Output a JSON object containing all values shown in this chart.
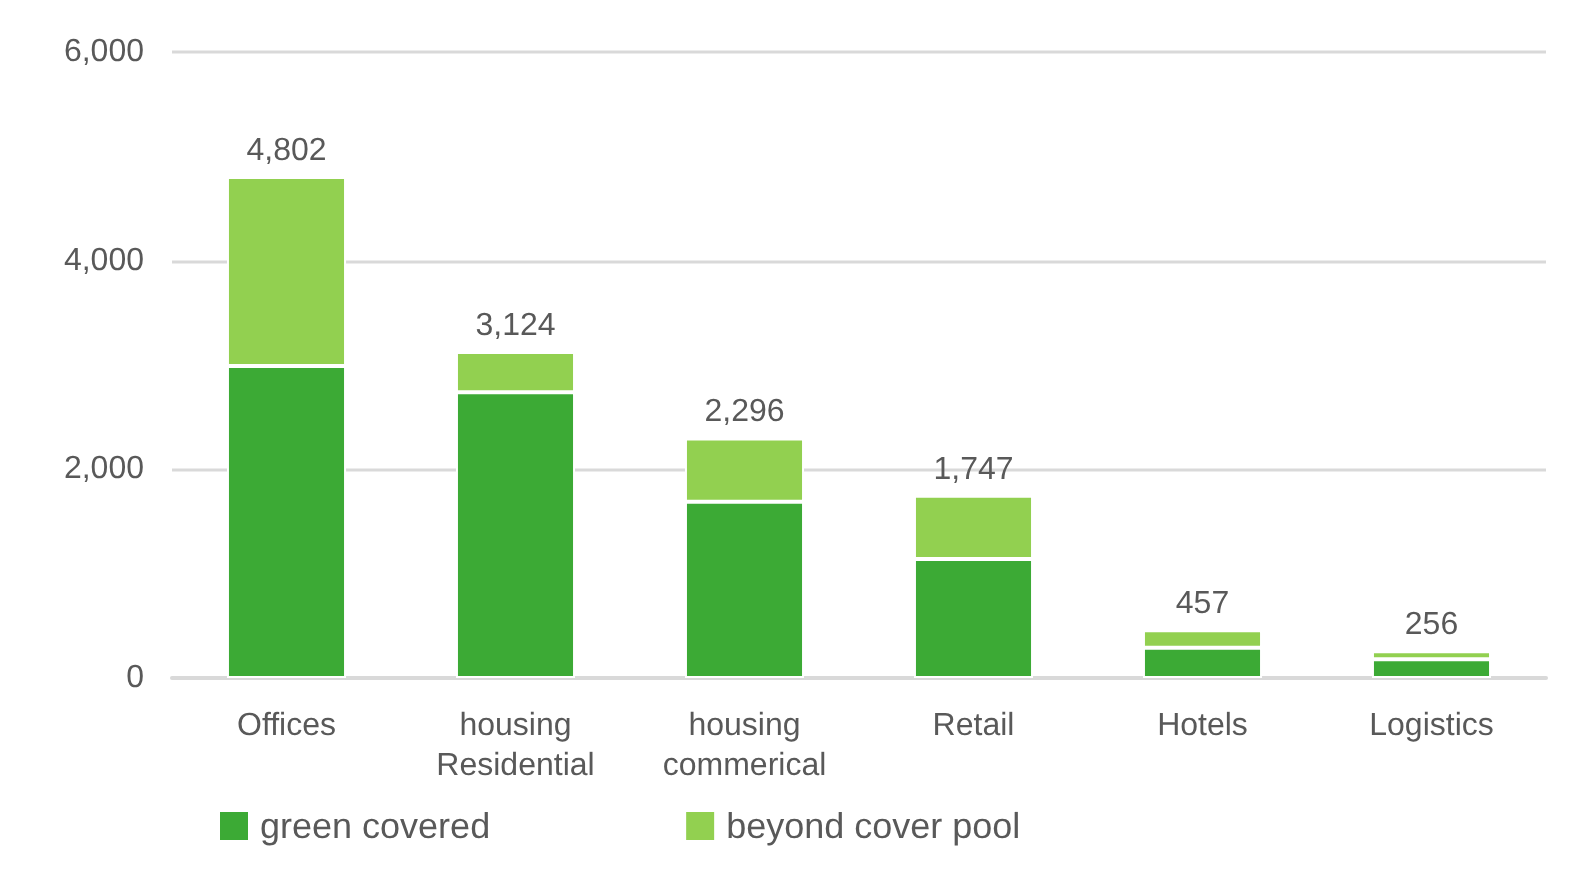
{
  "chart_data": {
    "type": "bar",
    "stacked": true,
    "categories": [
      "Offices",
      "housing\nResidential",
      "housing\ncommerical",
      "Retail",
      "Hotels",
      "Logistics"
    ],
    "series": [
      {
        "name": "green covered",
        "color": "#3caa35",
        "values": [
          2990,
          2740,
          1690,
          1140,
          290,
          180
        ]
      },
      {
        "name": "beyond cover pool",
        "color": "#92d050",
        "values": [
          1812,
          384,
          606,
          607,
          167,
          76
        ]
      }
    ],
    "totals": [
      "4,802",
      "3,124",
      "2,296",
      "1,747",
      "457",
      "256"
    ],
    "ylim": [
      0,
      6000
    ],
    "yticks": [
      {
        "value": 0,
        "label": "0"
      },
      {
        "value": 2000,
        "label": "2,000"
      },
      {
        "value": 4000,
        "label": "4,000"
      },
      {
        "value": 6000,
        "label": "6,000"
      }
    ],
    "grid": "y",
    "legend": "bottom left"
  }
}
